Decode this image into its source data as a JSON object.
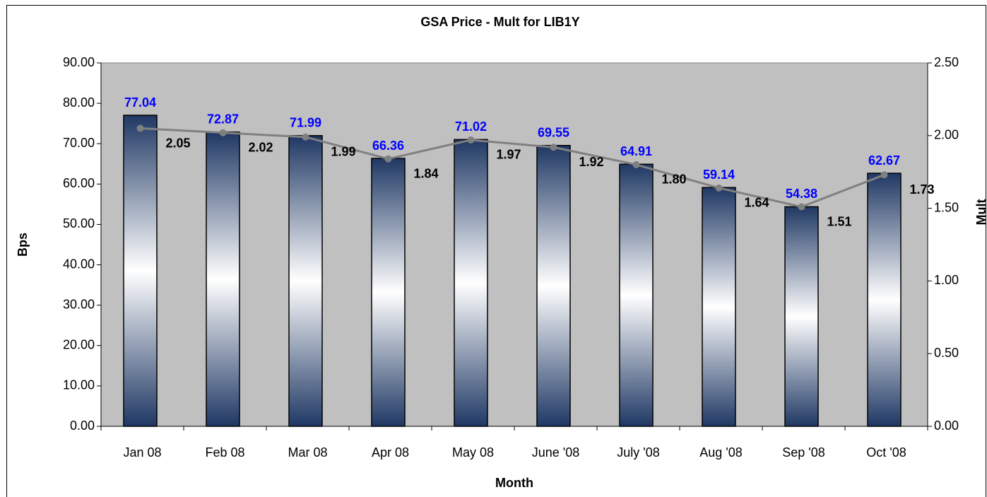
{
  "chart_data": {
    "type": "bar",
    "title": "GSA Price - Mult for LIB1Y",
    "x_label": "Month",
    "y_label": "Bps",
    "y2_label": "Mult",
    "categories": [
      "Jan 08",
      "Feb 08",
      "Mar 08",
      "Apr 08",
      "May 08",
      "June '08",
      "July '08",
      "Aug '08",
      "Sep '08",
      "Oct '08"
    ],
    "series": [
      {
        "name": "Bps",
        "type": "bar",
        "color": "#1f3864",
        "label_color": "#0000ff",
        "values": [
          77.04,
          72.87,
          71.99,
          66.36,
          71.02,
          69.55,
          64.91,
          59.14,
          54.38,
          62.67
        ]
      },
      {
        "name": "Mult",
        "type": "line",
        "axis": "y2",
        "color": "#808080",
        "label_color": "#000000",
        "values": [
          2.05,
          2.02,
          1.99,
          1.84,
          1.97,
          1.92,
          1.8,
          1.64,
          1.51,
          1.73
        ],
        "value_labels": [
          "2.05",
          "2.02",
          "1.99",
          "1.84",
          "1.97",
          "1.92",
          "1.80",
          "1.64",
          "1.51",
          "1.73"
        ]
      }
    ],
    "ylim": [
      0,
      90
    ],
    "yticks": [
      {
        "value": 0,
        "label": "0.00"
      },
      {
        "value": 10,
        "label": "10.00"
      },
      {
        "value": 20,
        "label": "20.00"
      },
      {
        "value": 30,
        "label": "30.00"
      },
      {
        "value": 40,
        "label": "40.00"
      },
      {
        "value": 50,
        "label": "50.00"
      },
      {
        "value": 60,
        "label": "60.00"
      },
      {
        "value": 70,
        "label": "70.00"
      },
      {
        "value": 80,
        "label": "80.00"
      },
      {
        "value": 90,
        "label": "90.00"
      }
    ],
    "y2lim": [
      0,
      2.5
    ],
    "y2ticks": [
      {
        "value": 0,
        "label": "0.00"
      },
      {
        "value": 0.5,
        "label": "0.50"
      },
      {
        "value": 1,
        "label": "1.00"
      },
      {
        "value": 1.5,
        "label": "1.50"
      },
      {
        "value": 2,
        "label": "2.00"
      },
      {
        "value": 2.5,
        "label": "2.50"
      }
    ],
    "plot_background": "#c0c0c0"
  }
}
